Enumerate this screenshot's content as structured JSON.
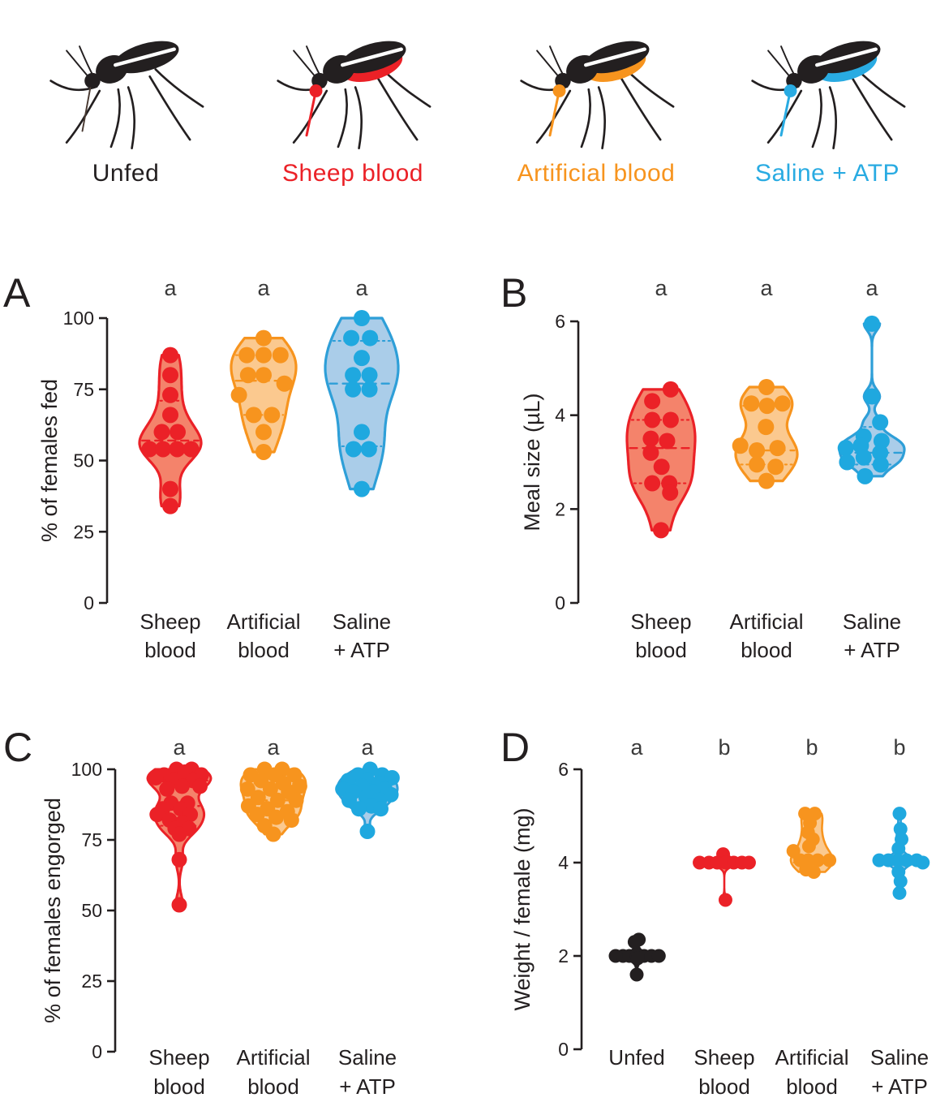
{
  "legend": {
    "items": [
      {
        "label": "Unfed",
        "color": "#231F20",
        "fed": false
      },
      {
        "label": "Sheep blood",
        "color": "#EB2127",
        "fed": true
      },
      {
        "label": "Artificial blood",
        "color": "#F7941E",
        "fed": true
      },
      {
        "label": "Saline + ATP",
        "color": "#29ABE2",
        "fed": true
      }
    ]
  },
  "colors": {
    "black": {
      "stroke": "#231F20",
      "fill": "#231F20",
      "point": "#231F20"
    },
    "red": {
      "stroke": "#EB2127",
      "fill": "#F4836B",
      "point": "#EB2127"
    },
    "orange": {
      "stroke": "#F7941E",
      "fill": "#FBC98F",
      "point": "#F7941E"
    },
    "blue": {
      "stroke": "#2E9FD8",
      "fill": "#AACDE9",
      "point": "#1FA8DF"
    },
    "axis": "#231F20",
    "sig": "#3A3A3A",
    "text": "#231F20"
  },
  "chart_data": [
    {
      "panel": "A",
      "type": "violin-scatter",
      "ylabel": "% of females fed",
      "ylim": [
        0,
        100
      ],
      "yticks": [
        0,
        25,
        50,
        75,
        100
      ],
      "categories": [
        [
          "Sheep",
          "blood"
        ],
        [
          "Artificial",
          "blood"
        ],
        [
          "Saline",
          "+ ATP"
        ]
      ],
      "sig_letters": [
        "a",
        "a",
        "a"
      ],
      "series": [
        {
          "name": "Sheep blood",
          "color_key": "red",
          "median": 57,
          "q1": 53,
          "q3": 71,
          "points": [
            [
              0,
              87
            ],
            [
              0,
              80
            ],
            [
              0,
              73
            ],
            [
              0,
              66
            ],
            [
              -0.35,
              60
            ],
            [
              0.3,
              60
            ],
            [
              -0.85,
              54
            ],
            [
              -0.3,
              54
            ],
            [
              0.28,
              54
            ],
            [
              0.85,
              54
            ],
            [
              0,
              40
            ],
            [
              0,
              34
            ]
          ]
        },
        {
          "name": "Artificial blood",
          "color_key": "orange",
          "median": 78,
          "q1": 66,
          "q3": 87,
          "points": [
            [
              0,
              93
            ],
            [
              -0.65,
              87
            ],
            [
              0,
              87
            ],
            [
              0.65,
              87
            ],
            [
              -0.6,
              80
            ],
            [
              0,
              80
            ],
            [
              0.8,
              77
            ],
            [
              -0.95,
              73
            ],
            [
              -0.38,
              66
            ],
            [
              0.32,
              66
            ],
            [
              0,
              60
            ],
            [
              0,
              53
            ]
          ]
        },
        {
          "name": "Saline + ATP",
          "color_key": "blue",
          "median": 77,
          "q1": 55,
          "q3": 92,
          "points": [
            [
              0,
              100
            ],
            [
              -0.38,
              93
            ],
            [
              0.3,
              93
            ],
            [
              0,
              86
            ],
            [
              -0.32,
              80
            ],
            [
              0.28,
              80
            ],
            [
              -0.32,
              75
            ],
            [
              0.28,
              75
            ],
            [
              0,
              60
            ],
            [
              -0.3,
              54
            ],
            [
              0.26,
              54
            ],
            [
              0,
              40
            ]
          ]
        }
      ]
    },
    {
      "panel": "B",
      "type": "violin-scatter",
      "ylabel": "Meal size (µL)",
      "ylim": [
        0,
        6
      ],
      "yticks": [
        0,
        2,
        4,
        6
      ],
      "categories": [
        [
          "Sheep",
          "blood"
        ],
        [
          "Artificial",
          "blood"
        ],
        [
          "Saline",
          "+ ATP"
        ]
      ],
      "sig_letters": [
        "a",
        "a",
        "a"
      ],
      "series": [
        {
          "name": "Sheep blood",
          "color_key": "red",
          "median": 3.3,
          "q1": 2.55,
          "q3": 3.9,
          "points": [
            [
              0.35,
              4.55
            ],
            [
              -0.32,
              4.3
            ],
            [
              -0.32,
              3.9
            ],
            [
              0.35,
              3.9
            ],
            [
              -0.37,
              3.5
            ],
            [
              0.22,
              3.45
            ],
            [
              -0.37,
              3.2
            ],
            [
              0.02,
              2.9
            ],
            [
              -0.32,
              2.55
            ],
            [
              0.3,
              2.55
            ],
            [
              0.33,
              2.35
            ],
            [
              0,
              1.55
            ]
          ]
        },
        {
          "name": "Artificial blood",
          "color_key": "orange",
          "median": 3.25,
          "q1": 2.95,
          "q3": 4.2,
          "points": [
            [
              0,
              4.6
            ],
            [
              -0.55,
              4.25
            ],
            [
              0.02,
              4.2
            ],
            [
              0.58,
              4.25
            ],
            [
              -0.02,
              3.75
            ],
            [
              -0.95,
              3.35
            ],
            [
              -0.35,
              3.25
            ],
            [
              0.4,
              3.3
            ],
            [
              -0.35,
              2.95
            ],
            [
              0.33,
              2.9
            ],
            [
              0,
              2.6
            ]
          ]
        },
        {
          "name": "Saline + ATP",
          "color_key": "blue",
          "median": 3.2,
          "q1": 2.95,
          "q3": 3.75,
          "points": [
            [
              0,
              5.95
            ],
            [
              0,
              4.4
            ],
            [
              0.3,
              3.85
            ],
            [
              -0.3,
              3.55
            ],
            [
              0.35,
              3.45
            ],
            [
              -0.4,
              3.35
            ],
            [
              -0.95,
              3.3
            ],
            [
              0.3,
              3.2
            ],
            [
              -0.3,
              3.1
            ],
            [
              -0.9,
              3.0
            ],
            [
              0.32,
              2.95
            ],
            [
              -0.25,
              2.7
            ]
          ]
        }
      ]
    },
    {
      "panel": "C",
      "type": "violin-scatter",
      "ylabel": "% of females engorged",
      "ylim": [
        0,
        100
      ],
      "yticks": [
        0,
        25,
        50,
        75,
        100
      ],
      "categories": [
        [
          "Sheep",
          "blood"
        ],
        [
          "Artificial",
          "blood"
        ],
        [
          "Saline",
          "+ ATP"
        ]
      ],
      "sig_letters": [
        "a",
        "a",
        "a"
      ],
      "series": [
        {
          "name": "Sheep blood",
          "color_key": "red",
          "median": 87,
          "q1": 80,
          "q3": 96,
          "points": [
            [
              -0.1,
              100
            ],
            [
              0.45,
              100
            ],
            [
              0.2,
              99
            ],
            [
              -0.55,
              98
            ],
            [
              0.8,
              98
            ],
            [
              -0.85,
              97
            ],
            [
              -0.2,
              96
            ],
            [
              0.5,
              96
            ],
            [
              0.1,
              94
            ],
            [
              0.75,
              94
            ],
            [
              -0.45,
              93
            ],
            [
              -0.3,
              88
            ],
            [
              0.3,
              88
            ],
            [
              -0.6,
              86
            ],
            [
              0.05,
              86
            ],
            [
              -0.8,
              84
            ],
            [
              0.4,
              84
            ],
            [
              -0.35,
              82
            ],
            [
              0.1,
              81
            ],
            [
              -0.15,
              79
            ],
            [
              0.35,
              79
            ],
            [
              0,
              77
            ],
            [
              0,
              68
            ],
            [
              0,
              52
            ]
          ]
        },
        {
          "name": "Artificial blood",
          "color_key": "orange",
          "median": 89,
          "q1": 84,
          "q3": 95,
          "points": [
            [
              -0.3,
              100
            ],
            [
              0.3,
              100
            ],
            [
              -0.78,
              98
            ],
            [
              0.05,
              98
            ],
            [
              0.72,
              98
            ],
            [
              -0.42,
              96
            ],
            [
              0.35,
              95
            ],
            [
              0.9,
              94
            ],
            [
              -0.88,
              93
            ],
            [
              -0.1,
              93
            ],
            [
              0.52,
              92
            ],
            [
              -0.52,
              90
            ],
            [
              0.15,
              89
            ],
            [
              0.78,
              89
            ],
            [
              -0.85,
              87
            ],
            [
              -0.2,
              86
            ],
            [
              0.48,
              85
            ],
            [
              -0.55,
              84
            ],
            [
              0.1,
              83
            ],
            [
              0.62,
              82
            ],
            [
              -0.3,
              80
            ],
            [
              0,
              77
            ]
          ]
        },
        {
          "name": "Saline + ATP",
          "color_key": "blue",
          "median": 91,
          "q1": 87,
          "q3": 94,
          "points": [
            [
              0.1,
              100
            ],
            [
              -0.35,
              98
            ],
            [
              0.55,
              98
            ],
            [
              0.92,
              97
            ],
            [
              -0.72,
              96
            ],
            [
              0,
              96
            ],
            [
              0.42,
              95
            ],
            [
              -0.2,
              94
            ],
            [
              -0.92,
              93
            ],
            [
              0.65,
              93
            ],
            [
              0.22,
              92
            ],
            [
              -0.52,
              92
            ],
            [
              0.88,
              91
            ],
            [
              -0.05,
              90
            ],
            [
              0.45,
              89
            ],
            [
              -0.68,
              89
            ],
            [
              0.15,
              87
            ],
            [
              -0.32,
              86
            ],
            [
              0.5,
              86
            ],
            [
              0,
              78
            ]
          ]
        }
      ]
    },
    {
      "panel": "D",
      "type": "violin-scatter",
      "ylabel": "Weight / female (mg)",
      "ylim": [
        0,
        6
      ],
      "yticks": [
        0,
        2,
        4,
        6
      ],
      "categories": [
        [
          "Unfed"
        ],
        [
          "Sheep",
          "blood"
        ],
        [
          "Artificial",
          "blood"
        ],
        [
          "Saline",
          "+ ATP"
        ]
      ],
      "sig_letters": [
        "a",
        "b",
        "b",
        "b"
      ],
      "series": [
        {
          "name": "Unfed",
          "color_key": "black",
          "median": 2.0,
          "q1": 1.95,
          "q3": 2.05,
          "points": [
            [
              0.1,
              2.35
            ],
            [
              -0.1,
              2.3
            ],
            [
              -1.0,
              2.0
            ],
            [
              -0.65,
              2.0
            ],
            [
              -0.35,
              2.0
            ],
            [
              0,
              2.0
            ],
            [
              0.35,
              2.0
            ],
            [
              0.7,
              2.0
            ],
            [
              1.05,
              2.0
            ],
            [
              0.05,
              1.95
            ],
            [
              0,
              1.6
            ]
          ]
        },
        {
          "name": "Sheep blood",
          "color_key": "red",
          "median": 4.0,
          "q1": 4.0,
          "q3": 4.0,
          "points": [
            [
              -0.05,
              4.18
            ],
            [
              -1.05,
              4.0
            ],
            [
              -0.65,
              4.0
            ],
            [
              -0.3,
              4.0
            ],
            [
              0.05,
              4.0
            ],
            [
              0.4,
              4.0
            ],
            [
              0.75,
              4.0
            ],
            [
              1.05,
              4.0
            ],
            [
              0.05,
              3.2
            ]
          ]
        },
        {
          "name": "Artificial blood",
          "color_key": "orange",
          "median": 4.1,
          "q1": 4.0,
          "q3": 4.6,
          "points": [
            [
              -0.35,
              5.05
            ],
            [
              0.15,
              5.05
            ],
            [
              -0.1,
              4.85
            ],
            [
              -0.2,
              4.65
            ],
            [
              0.05,
              4.5
            ],
            [
              -0.15,
              4.35
            ],
            [
              -0.95,
              4.25
            ],
            [
              -0.6,
              4.05
            ],
            [
              -0.2,
              4.05
            ],
            [
              0.3,
              4.05
            ],
            [
              0.9,
              4.05
            ],
            [
              -0.3,
              3.85
            ],
            [
              0.1,
              3.8
            ]
          ]
        },
        {
          "name": "Saline + ATP",
          "color_key": "blue",
          "median": 4.05,
          "q1": 3.95,
          "q3": 4.3,
          "points": [
            [
              0,
              5.05
            ],
            [
              0.05,
              4.72
            ],
            [
              0.1,
              4.5
            ],
            [
              -0.05,
              4.3
            ],
            [
              -1.0,
              4.05
            ],
            [
              -0.55,
              4.05
            ],
            [
              -0.1,
              4.05
            ],
            [
              0.35,
              4.05
            ],
            [
              0.85,
              4.05
            ],
            [
              1.15,
              4.0
            ],
            [
              -0.05,
              3.8
            ],
            [
              0.05,
              3.6
            ],
            [
              0,
              3.35
            ]
          ]
        }
      ]
    }
  ]
}
